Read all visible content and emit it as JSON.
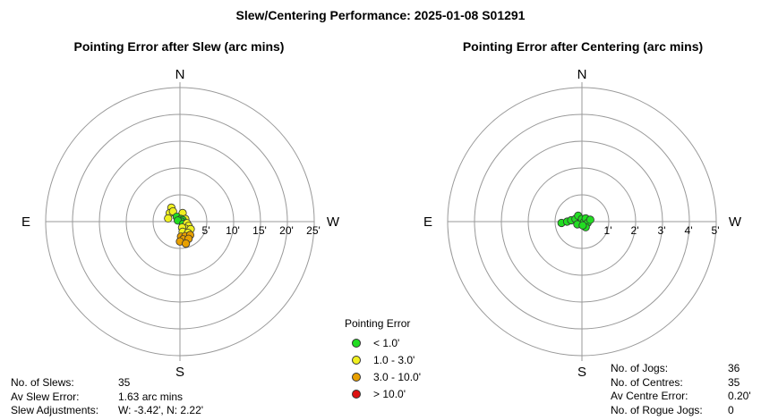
{
  "title": "Slew/Centering Performance: 2025-01-08 S01291",
  "legend": {
    "title": "Pointing Error",
    "items": [
      {
        "label": "< 1.0'",
        "color": "#22dd22"
      },
      {
        "label": "1.0 - 3.0'",
        "color": "#f0f020"
      },
      {
        "label": "3.0 - 10.0'",
        "color": "#e8a000"
      },
      {
        "label": "> 10.0'",
        "color": "#dd1111"
      }
    ]
  },
  "stats_left": [
    {
      "label": "No. of Slews:",
      "value": "35"
    },
    {
      "label": "Av Slew Error:",
      "value": "1.63 arc mins"
    },
    {
      "label": "Slew Adjustments:",
      "value": "W: -3.42', N: 2.22'"
    }
  ],
  "stats_right": [
    {
      "label": "No. of Jogs:",
      "value": "36"
    },
    {
      "label": "No. of Centres:",
      "value": "35"
    },
    {
      "label": "Av Centre Error:",
      "value": "0.20'"
    },
    {
      "label": "No. of Rogue Jogs:",
      "value": "0"
    }
  ],
  "chart_data": [
    {
      "type": "scatter",
      "title": "Pointing Error after Slew (arc mins)",
      "coordinate": "polar-compass",
      "directions": {
        "n": "N",
        "s": "S",
        "e": "E",
        "w": "W"
      },
      "rings": [
        5,
        10,
        15,
        20,
        25
      ],
      "ring_labels": [
        "5'",
        "10'",
        "15'",
        "20'",
        "25'"
      ],
      "x_axis": "W (arc mins, positive toward W)",
      "y_axis": "N (arc mins, positive toward N)",
      "points": [
        {
          "x": -1.6,
          "y": 2.6,
          "color": "#f0f020"
        },
        {
          "x": -1.9,
          "y": 1.6,
          "color": "#f0f020"
        },
        {
          "x": -1.3,
          "y": 1.9,
          "color": "#f0f020"
        },
        {
          "x": 0.5,
          "y": 1.6,
          "color": "#f0f020"
        },
        {
          "x": -2.2,
          "y": 0.6,
          "color": "#f0f020"
        },
        {
          "x": 1.0,
          "y": 0.5,
          "color": "#f0f020"
        },
        {
          "x": -0.6,
          "y": 0.9,
          "color": "#22dd22"
        },
        {
          "x": 0.2,
          "y": 0.5,
          "color": "#22dd22"
        },
        {
          "x": 0.5,
          "y": 0.3,
          "color": "#22dd22"
        },
        {
          "x": 0.3,
          "y": 0.0,
          "color": "#22dd22"
        },
        {
          "x": -0.4,
          "y": 0.2,
          "color": "#22dd22"
        },
        {
          "x": 0.6,
          "y": -0.4,
          "color": "#22dd22"
        },
        {
          "x": 1.3,
          "y": -0.3,
          "color": "#f0f020"
        },
        {
          "x": 1.6,
          "y": -0.8,
          "color": "#f0f020"
        },
        {
          "x": 1.0,
          "y": -1.3,
          "color": "#f0f020"
        },
        {
          "x": 0.4,
          "y": -1.1,
          "color": "#f0f020"
        },
        {
          "x": 2.0,
          "y": -1.4,
          "color": "#f0f020"
        },
        {
          "x": 0.5,
          "y": -1.9,
          "color": "#f0f020"
        },
        {
          "x": 1.5,
          "y": -2.1,
          "color": "#f0f020"
        },
        {
          "x": 0.2,
          "y": -2.8,
          "color": "#e8a000"
        },
        {
          "x": 1.0,
          "y": -2.7,
          "color": "#e8a000"
        },
        {
          "x": 1.9,
          "y": -2.5,
          "color": "#e8a000"
        },
        {
          "x": 0.6,
          "y": -3.3,
          "color": "#e8a000"
        },
        {
          "x": 1.6,
          "y": -3.2,
          "color": "#e8a000"
        },
        {
          "x": 0.0,
          "y": -3.7,
          "color": "#e8a000"
        },
        {
          "x": 1.1,
          "y": -4.1,
          "color": "#e8a000"
        }
      ]
    },
    {
      "type": "scatter",
      "title": "Pointing Error after Centering (arc mins)",
      "coordinate": "polar-compass",
      "directions": {
        "n": "N",
        "s": "S",
        "e": "E",
        "w": "W"
      },
      "rings": [
        1,
        2,
        3,
        4,
        5
      ],
      "ring_labels": [
        "1'",
        "2'",
        "3'",
        "4'",
        "5'"
      ],
      "x_axis": "W (arc mins, positive toward W)",
      "y_axis": "N (arc mins, positive toward N)",
      "points": [
        {
          "x": -0.76,
          "y": -0.05,
          "color": "#22dd22"
        },
        {
          "x": -0.55,
          "y": 0.0,
          "color": "#22dd22"
        },
        {
          "x": -0.4,
          "y": 0.05,
          "color": "#22dd22"
        },
        {
          "x": -0.24,
          "y": 0.1,
          "color": "#22dd22"
        },
        {
          "x": -0.14,
          "y": 0.22,
          "color": "#22dd22"
        },
        {
          "x": -0.1,
          "y": -0.07,
          "color": "#22dd22"
        },
        {
          "x": 0.0,
          "y": 0.1,
          "color": "#22dd22"
        },
        {
          "x": 0.07,
          "y": -0.03,
          "color": "#22dd22"
        },
        {
          "x": 0.14,
          "y": 0.12,
          "color": "#22dd22"
        },
        {
          "x": 0.21,
          "y": -0.05,
          "color": "#22dd22"
        },
        {
          "x": 0.31,
          "y": 0.07,
          "color": "#22dd22"
        },
        {
          "x": 0.14,
          "y": -0.21,
          "color": "#22dd22"
        },
        {
          "x": -0.17,
          "y": -0.1,
          "color": "#22dd22"
        },
        {
          "x": 0.03,
          "y": -0.14,
          "color": "#22dd22"
        }
      ]
    }
  ]
}
